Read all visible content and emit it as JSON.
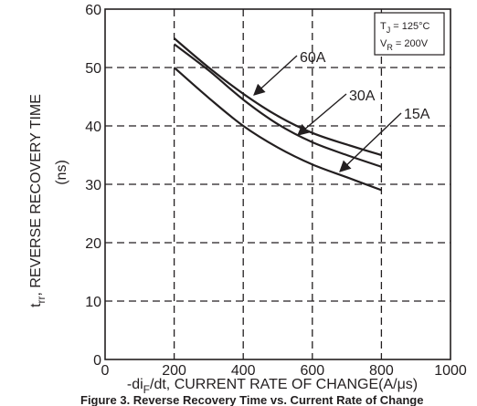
{
  "chart_data": {
    "type": "line",
    "title": "",
    "caption": "Figure 3. Reverse Recovery Time vs. Current Rate of Change",
    "xlabel": {
      "prefix": "-di",
      "sub": "F",
      "suffix": "/dt, CURRENT RATE OF CHANGE(A/μs)"
    },
    "ylabel": {
      "prefix": "t",
      "sub": "rr",
      "suffix": ", REVERSE RECOVERY TIME",
      "unit": "(ns)"
    },
    "xlim": [
      0,
      1000
    ],
    "ylim": [
      0,
      60
    ],
    "xticks": [
      0,
      200,
      400,
      600,
      800,
      1000
    ],
    "yticks": [
      0,
      10,
      20,
      30,
      40,
      50,
      60
    ],
    "grid": true,
    "conditions": {
      "tj": {
        "prefix": "T",
        "sub": "J",
        "value": " = 125°C"
      },
      "vr": {
        "prefix": "V",
        "sub": "R",
        "value": " = 200V"
      }
    },
    "series": [
      {
        "name": "60A",
        "x": [
          200,
          300,
          400,
          500,
          600,
          700,
          800
        ],
        "y": [
          55.0,
          50.0,
          45.5,
          41.7,
          38.8,
          36.8,
          35.0
        ]
      },
      {
        "name": "30A",
        "x": [
          200,
          300,
          400,
          500,
          600,
          700,
          800
        ],
        "y": [
          54.0,
          49.5,
          44.5,
          40.3,
          37.2,
          35.0,
          33.0
        ]
      },
      {
        "name": "15A",
        "x": [
          200,
          300,
          400,
          500,
          600,
          700,
          800
        ],
        "y": [
          50.0,
          44.8,
          40.0,
          36.3,
          33.4,
          31.2,
          29.0
        ]
      }
    ]
  }
}
